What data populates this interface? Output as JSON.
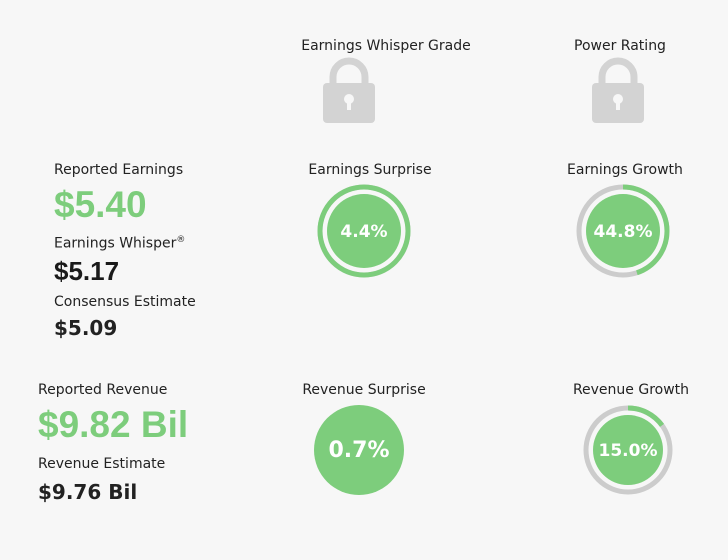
{
  "headers": {
    "whisper_grade": "Earnings Whisper Grade",
    "power_rating": "Power Rating"
  },
  "earnings": {
    "reported_label": "Reported Earnings",
    "reported_value": "$5.40",
    "whisper_label": "Earnings Whisper",
    "whisper_mark": "®",
    "whisper_value": "$5.17",
    "consensus_label": "Consensus Estimate",
    "consensus_value": "$5.09"
  },
  "revenue": {
    "reported_label": "Reported Revenue",
    "reported_value": "$9.82 Bil",
    "estimate_label": "Revenue Estimate",
    "estimate_value": "$9.76 Bil"
  },
  "gauges": {
    "earnings_surprise": {
      "label": "Earnings Surprise",
      "value_text": "4.4%",
      "fill_fraction": 1.0
    },
    "earnings_growth": {
      "label": "Earnings Growth",
      "value_text": "44.8%",
      "fill_fraction": 0.448
    },
    "revenue_surprise": {
      "label": "Revenue Surprise",
      "value_text": "0.7%",
      "fill_fraction": 0.0
    },
    "revenue_growth": {
      "label": "Revenue Growth",
      "value_text": "15.0%",
      "fill_fraction": 0.15
    }
  },
  "colors": {
    "positive": "#7dcd7c",
    "track": "#cccccc",
    "lock": "#d3d3d3"
  }
}
